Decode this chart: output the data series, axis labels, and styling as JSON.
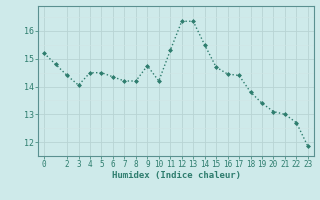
{
  "x": [
    0,
    1,
    2,
    3,
    4,
    5,
    6,
    7,
    8,
    9,
    10,
    11,
    12,
    13,
    14,
    15,
    16,
    17,
    18,
    19,
    20,
    21,
    22,
    23
  ],
  "y": [
    15.2,
    14.8,
    14.4,
    14.05,
    14.5,
    14.5,
    14.35,
    14.2,
    14.2,
    14.75,
    14.2,
    15.3,
    16.35,
    16.35,
    15.5,
    14.7,
    14.45,
    14.4,
    13.8,
    13.4,
    13.1,
    13.0,
    12.7,
    11.85
  ],
  "xlabel": "Humidex (Indice chaleur)",
  "line_color": "#2e7d6e",
  "marker_color": "#2e7d6e",
  "bg_color": "#ceeaea",
  "grid_color_major": "#b8d4d4",
  "grid_color_minor": "#d0e6e6",
  "axes_color": "#5a9090",
  "tick_color": "#2e7d6e",
  "ylim": [
    11.5,
    16.9
  ],
  "xlim": [
    -0.5,
    23.5
  ],
  "yticks": [
    12,
    13,
    14,
    15,
    16
  ],
  "xticks": [
    0,
    2,
    3,
    4,
    5,
    6,
    7,
    8,
    9,
    10,
    11,
    12,
    13,
    14,
    15,
    16,
    17,
    18,
    19,
    20,
    21,
    22,
    23
  ]
}
